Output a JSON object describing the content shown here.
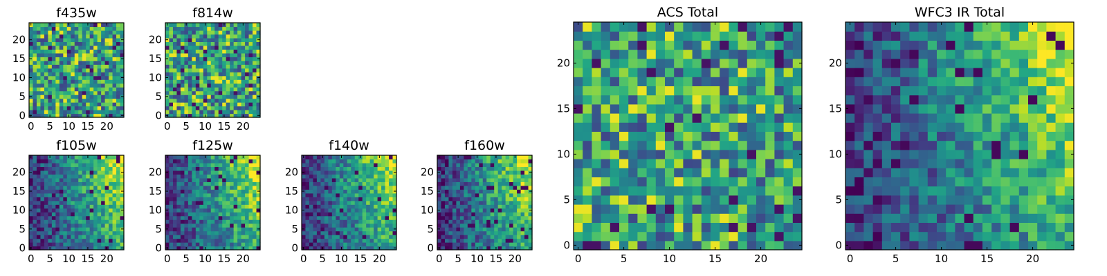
{
  "chart_data": [
    {
      "type": "heatmap",
      "title": "f435w",
      "xticks": [
        0,
        5,
        10,
        15,
        20
      ],
      "yticks": [
        0,
        5,
        10,
        15,
        20
      ],
      "grid": [
        25,
        25
      ],
      "seed": 11,
      "pattern": "noise"
    },
    {
      "type": "heatmap",
      "title": "f814w",
      "xticks": [
        0,
        5,
        10,
        15,
        20
      ],
      "yticks": [
        0,
        5,
        10,
        15,
        20
      ],
      "grid": [
        25,
        25
      ],
      "seed": 23,
      "pattern": "noise"
    },
    {
      "type": "heatmap",
      "title": "f105w",
      "xticks": [
        0,
        5,
        10,
        15,
        20
      ],
      "yticks": [
        0,
        5,
        10,
        15,
        20
      ],
      "grid": [
        25,
        25
      ],
      "seed": 37,
      "pattern": "gradient"
    },
    {
      "type": "heatmap",
      "title": "f125w",
      "xticks": [
        0,
        5,
        10,
        15,
        20
      ],
      "yticks": [
        0,
        5,
        10,
        15,
        20
      ],
      "grid": [
        25,
        25
      ],
      "seed": 41,
      "pattern": "gradient"
    },
    {
      "type": "heatmap",
      "title": "f140w",
      "xticks": [
        0,
        5,
        10,
        15,
        20
      ],
      "yticks": [
        0,
        5,
        10,
        15,
        20
      ],
      "grid": [
        25,
        25
      ],
      "seed": 53,
      "pattern": "gradient"
    },
    {
      "type": "heatmap",
      "title": "f160w",
      "xticks": [
        0,
        5,
        10,
        15,
        20
      ],
      "yticks": [
        0,
        5,
        10,
        15,
        20
      ],
      "grid": [
        25,
        25
      ],
      "seed": 67,
      "pattern": "gradient"
    },
    {
      "type": "heatmap",
      "title": "ACS Total",
      "xticks": [
        0,
        5,
        10,
        15,
        20
      ],
      "yticks": [
        0,
        5,
        10,
        15,
        20
      ],
      "grid": [
        25,
        25
      ],
      "seed": 79,
      "pattern": "noise"
    },
    {
      "type": "heatmap",
      "title": "WFC3 IR Total",
      "xticks": [
        0,
        5,
        10,
        15,
        20
      ],
      "yticks": [
        0,
        5,
        10,
        15,
        20
      ],
      "grid": [
        25,
        25
      ],
      "seed": 97,
      "pattern": "gradient"
    }
  ]
}
